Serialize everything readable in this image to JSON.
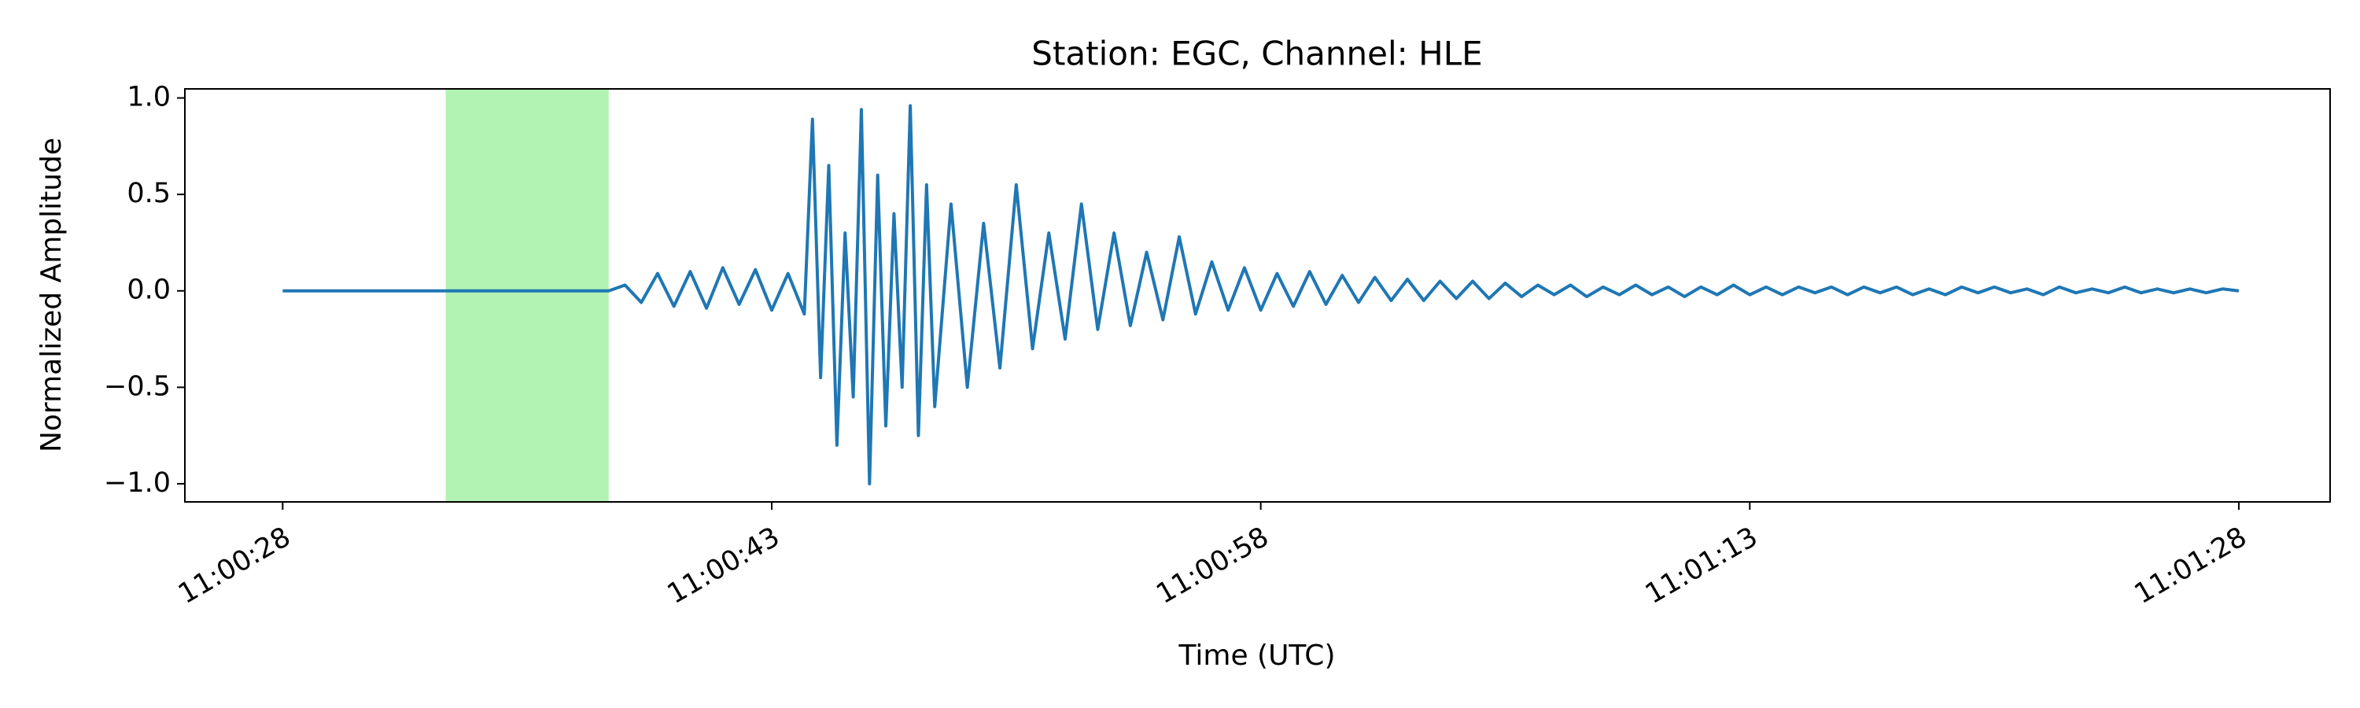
{
  "chart_data": {
    "type": "line",
    "title": "Station: EGC, Channel: HLE",
    "xlabel": "Time (UTC)",
    "ylabel": "Normalized Amplitude",
    "color": "#1f77b4",
    "highlight_span": [
      39633,
      39638
    ],
    "highlight_color": "#b2f2b2",
    "xlim": [
      39625,
      39690.8
    ],
    "ylim": [
      -1.094,
      1.047
    ],
    "xticks": [
      {
        "value": 39628,
        "label": "11:00:28"
      },
      {
        "value": 39643,
        "label": "11:00:43"
      },
      {
        "value": 39658,
        "label": "11:00:58"
      },
      {
        "value": 39673,
        "label": "11:01:13"
      },
      {
        "value": 39688,
        "label": "11:01:28"
      }
    ],
    "yticks": [
      {
        "value": 1,
        "label": "1.0"
      },
      {
        "value": 0.5,
        "label": "0.5"
      },
      {
        "value": 0,
        "label": "0.0"
      },
      {
        "value": -0.5,
        "label": "−0.5"
      },
      {
        "value": -1,
        "label": "−1.0"
      }
    ],
    "x": [
      39628,
      39638,
      39638.5,
      39639,
      39639.5,
      39640,
      39640.5,
      39641,
      39641.5,
      39642,
      39642.5,
      39643,
      39643.5,
      39644,
      39644.25,
      39644.5,
      39644.75,
      39645,
      39645.25,
      39645.5,
      39645.75,
      39646,
      39646.25,
      39646.5,
      39646.75,
      39647,
      39647.25,
      39647.5,
      39647.75,
      39648,
      39648.5,
      39649,
      39649.5,
      39650,
      39650.5,
      39651,
      39651.5,
      39652,
      39652.5,
      39653,
      39653.5,
      39654,
      39654.5,
      39655,
      39655.5,
      39656,
      39656.5,
      39657,
      39657.5,
      39658,
      39658.5,
      39659,
      39659.5,
      39660,
      39660.5,
      39661,
      39661.5,
      39662,
      39662.5,
      39663,
      39663.5,
      39664,
      39664.5,
      39665,
      39665.5,
      39666,
      39666.5,
      39667,
      39667.5,
      39668,
      39668.5,
      39669,
      39669.5,
      39670,
      39670.5,
      39671,
      39671.5,
      39672,
      39672.5,
      39673,
      39673.5,
      39674,
      39674.5,
      39675,
      39675.5,
      39676,
      39676.5,
      39677,
      39677.5,
      39678,
      39678.5,
      39679,
      39679.5,
      39680,
      39680.5,
      39681,
      39681.5,
      39682,
      39682.5,
      39683,
      39683.5,
      39684,
      39684.5,
      39685,
      39685.5,
      39686,
      39686.5,
      39687,
      39687.5,
      39688
    ],
    "values": [
      0,
      0,
      0.03,
      -0.06,
      0.09,
      -0.08,
      0.1,
      -0.09,
      0.12,
      -0.07,
      0.11,
      -0.1,
      0.09,
      -0.12,
      0.89,
      -0.45,
      0.65,
      -0.8,
      0.3,
      -0.55,
      0.94,
      -1.0,
      0.6,
      -0.7,
      0.4,
      -0.5,
      0.96,
      -0.75,
      0.55,
      -0.6,
      0.45,
      -0.5,
      0.35,
      -0.4,
      0.55,
      -0.3,
      0.3,
      -0.25,
      0.45,
      -0.2,
      0.3,
      -0.18,
      0.2,
      -0.15,
      0.28,
      -0.12,
      0.15,
      -0.1,
      0.12,
      -0.1,
      0.09,
      -0.08,
      0.1,
      -0.07,
      0.08,
      -0.06,
      0.07,
      -0.05,
      0.06,
      -0.05,
      0.05,
      -0.04,
      0.05,
      -0.04,
      0.04,
      -0.03,
      0.03,
      -0.02,
      0.03,
      -0.03,
      0.02,
      -0.02,
      0.03,
      -0.02,
      0.02,
      -0.03,
      0.02,
      -0.02,
      0.03,
      -0.02,
      0.02,
      -0.02,
      0.02,
      -0.01,
      0.02,
      -0.02,
      0.02,
      -0.01,
      0.02,
      -0.02,
      0.01,
      -0.02,
      0.02,
      -0.01,
      0.02,
      -0.01,
      0.01,
      -0.02,
      0.02,
      -0.01,
      0.01,
      -0.01,
      0.02,
      -0.01,
      0.01,
      -0.01,
      0.01,
      -0.01,
      0.01,
      0
    ]
  }
}
